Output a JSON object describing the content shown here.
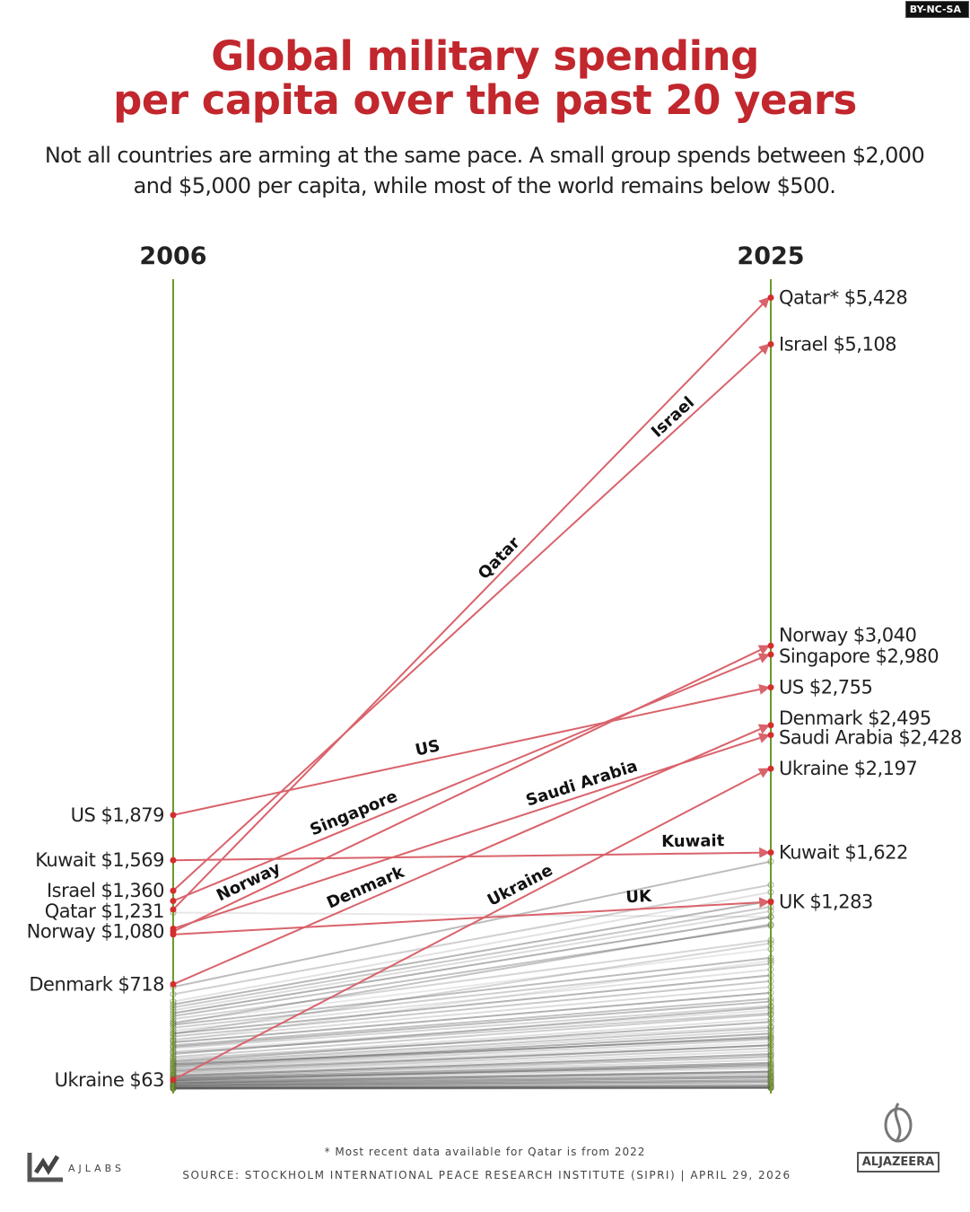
{
  "license": "BY-NC-SA",
  "title_line1": "Global military spending",
  "title_line2": "per capita over the past 20 years",
  "subtitle": "Not all countries are arming at the same pace. A small group spends between $2,000 and $5,000 per capita, while most of the world remains below $500.",
  "footnote": "* Most recent data available for Qatar is from 2022",
  "source": "SOURCE: STOCKHOLM INTERNATIONAL PEACE RESEARCH INSTITUTE (SIPRI)  |  APRIL 29, 2026",
  "brand_left": "AJLABS",
  "brand_right": "ALJAZEERA",
  "chart_data": {
    "type": "slope",
    "x": [
      "2006",
      "2025"
    ],
    "colors": {
      "highlight": "#d9636b",
      "highlight_dot": "#d32f2f",
      "axis": "#6a9a2a",
      "other": "#444444",
      "title": "#c1272d"
    },
    "highlighted": [
      {
        "name": "Qatar",
        "v2006": 1231,
        "v2025": 5428,
        "label2006": "Qatar $1,231",
        "label2025": "Qatar* $5,428"
      },
      {
        "name": "Israel",
        "v2006": 1360,
        "v2025": 5108,
        "label2006": "Israel $1,360",
        "label2025": "Israel $5,108"
      },
      {
        "name": "Norway",
        "v2006": 1080,
        "v2025": 3040,
        "label2006": "Norway $1,080",
        "label2025": "Norway $3,040"
      },
      {
        "name": "Singapore",
        "v2006": 1290,
        "v2025": 2980,
        "label2006": "",
        "label2025": "Singapore $2,980"
      },
      {
        "name": "US",
        "v2006": 1879,
        "v2025": 2755,
        "label2006": "US $1,879",
        "label2025": "US $2,755"
      },
      {
        "name": "Denmark",
        "v2006": 718,
        "v2025": 2495,
        "label2006": "Denmark $718",
        "label2025": "Denmark $2,495"
      },
      {
        "name": "Saudi Arabia",
        "v2006": 1100,
        "v2025": 2428,
        "label2006": "",
        "label2025": "Saudi Arabia $2,428"
      },
      {
        "name": "Ukraine",
        "v2006": 63,
        "v2025": 2197,
        "label2006": "Ukraine $63",
        "label2025": "Ukraine $2,197"
      },
      {
        "name": "Kuwait",
        "v2006": 1569,
        "v2025": 1622,
        "label2006": "Kuwait $1,569",
        "label2025": "Kuwait $1,622"
      },
      {
        "name": "UK",
        "v2006": 1060,
        "v2025": 1283,
        "label2006": "",
        "label2025": "UK $1,283"
      }
    ],
    "others": [
      [
        1210,
        1180
      ],
      [
        700,
        1560
      ],
      [
        650,
        1400
      ],
      [
        600,
        1350
      ],
      [
        580,
        1290
      ],
      [
        560,
        1250
      ],
      [
        540,
        1220
      ],
      [
        520,
        1180
      ],
      [
        500,
        1120
      ],
      [
        480,
        1020
      ],
      [
        460,
        960
      ],
      [
        440,
        900
      ],
      [
        420,
        860
      ],
      [
        400,
        820
      ],
      [
        380,
        780
      ],
      [
        360,
        740
      ],
      [
        340,
        700
      ],
      [
        320,
        660
      ],
      [
        300,
        620
      ],
      [
        280,
        570
      ],
      [
        260,
        540
      ],
      [
        240,
        560
      ],
      [
        220,
        510
      ],
      [
        200,
        480
      ],
      [
        190,
        460
      ],
      [
        180,
        420
      ],
      [
        170,
        400
      ],
      [
        160,
        380
      ],
      [
        150,
        360
      ],
      [
        140,
        340
      ],
      [
        130,
        320
      ],
      [
        120,
        300
      ],
      [
        110,
        280
      ],
      [
        100,
        260
      ],
      [
        90,
        240
      ],
      [
        85,
        220
      ],
      [
        80,
        200
      ],
      [
        75,
        180
      ],
      [
        70,
        160
      ],
      [
        65,
        150
      ],
      [
        60,
        140
      ],
      [
        55,
        120
      ],
      [
        50,
        110
      ],
      [
        45,
        100
      ],
      [
        40,
        90
      ],
      [
        35,
        80
      ],
      [
        30,
        70
      ],
      [
        25,
        60
      ],
      [
        20,
        50
      ],
      [
        15,
        40
      ],
      [
        12,
        30
      ],
      [
        10,
        25
      ],
      [
        8,
        20
      ],
      [
        6,
        15
      ],
      [
        5,
        12
      ],
      [
        4,
        10
      ],
      [
        3,
        8
      ],
      [
        2,
        6
      ],
      [
        450,
        1130
      ],
      [
        380,
        1000
      ],
      [
        330,
        880
      ],
      [
        290,
        600
      ],
      [
        250,
        520
      ],
      [
        210,
        430
      ],
      [
        170,
        350
      ],
      [
        130,
        300
      ],
      [
        95,
        230
      ],
      [
        60,
        170
      ],
      [
        40,
        120
      ],
      [
        25,
        80
      ],
      [
        15,
        50
      ]
    ]
  }
}
